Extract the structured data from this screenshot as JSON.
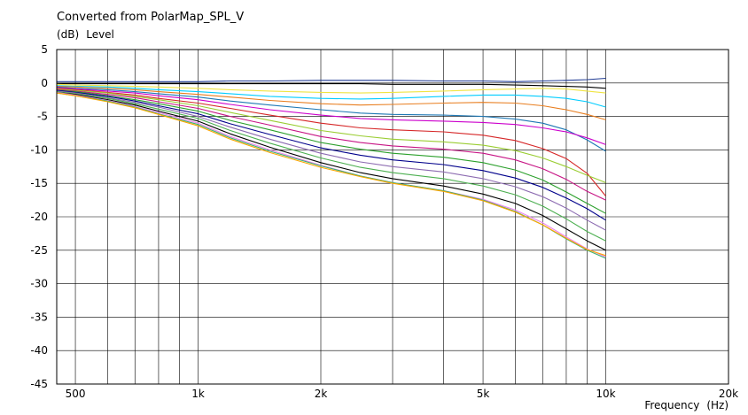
{
  "chart_data": {
    "type": "line",
    "title": "Converted from PolarMap_SPL_V",
    "ylabel": "Level",
    "yunit": "(dB)",
    "xlabel": "Frequency",
    "xunit": "(Hz)",
    "xscale": "log",
    "xlim": [
      450,
      20000
    ],
    "ylim": [
      -45,
      5
    ],
    "grid": true,
    "legend": "none",
    "yticks": [
      5,
      0,
      -5,
      -10,
      -15,
      -20,
      -25,
      -30,
      -35,
      -40,
      -45
    ],
    "yticklabels": [
      "5",
      "0",
      "-5",
      "-10",
      "-15",
      "-20",
      "-25",
      "-30",
      "-35",
      "-40",
      "-45"
    ],
    "xticks": [
      500,
      1000,
      2000,
      5000,
      10000,
      20000
    ],
    "xticklabels": [
      "500",
      "1k",
      "2k",
      "5k",
      "10k",
      "20k"
    ],
    "x": [
      450,
      500,
      600,
      700,
      800,
      1000,
      1200,
      1500,
      2000,
      2500,
      3000,
      4000,
      5000,
      6000,
      7000,
      8000,
      9000,
      10000
    ],
    "series": [
      {
        "color": "#1f3a93",
        "values": [
          0.2,
          0.2,
          0.2,
          0.2,
          0.2,
          0.2,
          0.3,
          0.3,
          0.4,
          0.4,
          0.4,
          0.3,
          0.3,
          0.2,
          0.3,
          0.4,
          0.5,
          0.7
        ]
      },
      {
        "color": "#000000",
        "values": [
          -0.1,
          -0.1,
          -0.1,
          -0.1,
          -0.1,
          -0.1,
          -0.1,
          -0.1,
          -0.1,
          -0.1,
          -0.2,
          -0.2,
          -0.2,
          -0.3,
          -0.4,
          -0.5,
          -0.6,
          -0.8
        ]
      },
      {
        "color": "#f0e442",
        "values": [
          -0.2,
          -0.3,
          -0.4,
          -0.5,
          -0.6,
          -0.8,
          -1.0,
          -1.2,
          -1.4,
          -1.5,
          -1.4,
          -1.2,
          -1.0,
          -0.9,
          -0.8,
          -0.9,
          -1.2,
          -1.5
        ]
      },
      {
        "color": "#00ccff",
        "values": [
          -0.4,
          -0.5,
          -0.6,
          -0.8,
          -1.0,
          -1.3,
          -1.6,
          -2.0,
          -2.3,
          -2.4,
          -2.3,
          -2.0,
          -1.8,
          -1.8,
          -2.0,
          -2.3,
          -2.8,
          -3.6
        ]
      },
      {
        "color": "#e87d1e",
        "values": [
          -0.5,
          -0.6,
          -0.8,
          -1.0,
          -1.3,
          -1.7,
          -2.1,
          -2.6,
          -3.1,
          -3.3,
          -3.2,
          -3.0,
          -2.9,
          -3.0,
          -3.4,
          -4.0,
          -4.7,
          -5.5
        ]
      },
      {
        "color": "#1f78b4",
        "values": [
          -0.6,
          -0.8,
          -1.0,
          -1.3,
          -1.6,
          -2.1,
          -2.7,
          -3.3,
          -4.0,
          -4.5,
          -4.7,
          -4.8,
          -5.0,
          -5.4,
          -6.0,
          -7.0,
          -8.5,
          -10.2
        ]
      },
      {
        "color": "#cc00cc",
        "values": [
          -0.7,
          -0.9,
          -1.2,
          -1.5,
          -1.9,
          -2.5,
          -3.2,
          -4.0,
          -4.8,
          -5.3,
          -5.5,
          -5.7,
          -5.9,
          -6.2,
          -6.7,
          -7.3,
          -8.2,
          -9.2
        ]
      },
      {
        "color": "#d62728",
        "values": [
          -0.8,
          -1.0,
          -1.4,
          -1.8,
          -2.3,
          -3.0,
          -3.8,
          -4.8,
          -6.0,
          -6.7,
          -7.0,
          -7.3,
          -7.8,
          -8.6,
          -9.8,
          -11.3,
          -13.5,
          -16.9
        ]
      },
      {
        "color": "#9acd32",
        "values": [
          -0.9,
          -1.1,
          -1.5,
          -2.0,
          -2.5,
          -3.4,
          -4.4,
          -5.6,
          -7.1,
          -7.9,
          -8.4,
          -8.8,
          -9.3,
          -10.1,
          -11.2,
          -12.5,
          -13.8,
          -14.9
        ]
      },
      {
        "color": "#c71585",
        "values": [
          -1.0,
          -1.2,
          -1.7,
          -2.2,
          -2.8,
          -3.8,
          -5.0,
          -6.3,
          -8.0,
          -8.9,
          -9.4,
          -9.9,
          -10.5,
          -11.5,
          -12.8,
          -14.4,
          -16.2,
          -17.5
        ]
      },
      {
        "color": "#2ca02c",
        "values": [
          -1.1,
          -1.3,
          -1.9,
          -2.5,
          -3.1,
          -4.2,
          -5.6,
          -7.0,
          -8.9,
          -9.9,
          -10.5,
          -11.1,
          -11.9,
          -13.0,
          -14.5,
          -16.3,
          -18.0,
          -19.5
        ]
      },
      {
        "color": "#00008b",
        "values": [
          -1.1,
          -1.4,
          -2.0,
          -2.7,
          -3.4,
          -4.6,
          -6.1,
          -7.7,
          -9.7,
          -10.8,
          -11.5,
          -12.2,
          -13.1,
          -14.2,
          -15.6,
          -17.2,
          -18.8,
          -20.5
        ]
      },
      {
        "color": "#8c6bb1",
        "values": [
          -1.2,
          -1.5,
          -2.2,
          -2.9,
          -3.6,
          -5.0,
          -6.6,
          -8.4,
          -10.5,
          -11.8,
          -12.5,
          -13.3,
          -14.3,
          -15.5,
          -17.0,
          -18.7,
          -20.5,
          -22.0
        ]
      },
      {
        "color": "#4caf50",
        "values": [
          -1.3,
          -1.6,
          -2.3,
          -3.1,
          -3.9,
          -5.3,
          -7.1,
          -9.0,
          -11.2,
          -12.6,
          -13.4,
          -14.3,
          -15.4,
          -16.7,
          -18.4,
          -20.3,
          -22.2,
          -23.6
        ]
      },
      {
        "color": "#000000",
        "values": [
          -1.4,
          -1.7,
          -2.5,
          -3.3,
          -4.2,
          -5.7,
          -7.6,
          -9.6,
          -11.9,
          -13.4,
          -14.3,
          -15.4,
          -16.6,
          -18.0,
          -19.8,
          -21.8,
          -23.6,
          -25.0
        ]
      },
      {
        "color": "#ee82ee",
        "values": [
          -1.4,
          -1.8,
          -2.6,
          -3.5,
          -4.4,
          -6.0,
          -8.0,
          -10.0,
          -12.3,
          -13.9,
          -14.9,
          -16.1,
          -17.4,
          -19.0,
          -20.9,
          -23.0,
          -24.8,
          -26.0
        ]
      },
      {
        "color": "#3cb371",
        "values": [
          -1.5,
          -1.9,
          -2.7,
          -3.6,
          -4.6,
          -6.2,
          -8.2,
          -10.2,
          -12.4,
          -13.9,
          -14.9,
          -16.1,
          -17.5,
          -19.2,
          -21.2,
          -23.3,
          -25.0,
          -26.2
        ]
      },
      {
        "color": "#ffa500",
        "values": [
          -1.5,
          -1.9,
          -2.8,
          -3.7,
          -4.7,
          -6.4,
          -8.4,
          -10.4,
          -12.6,
          -14.0,
          -15.0,
          -16.2,
          -17.6,
          -19.3,
          -21.2,
          -23.2,
          -24.9,
          -25.8
        ]
      }
    ]
  }
}
